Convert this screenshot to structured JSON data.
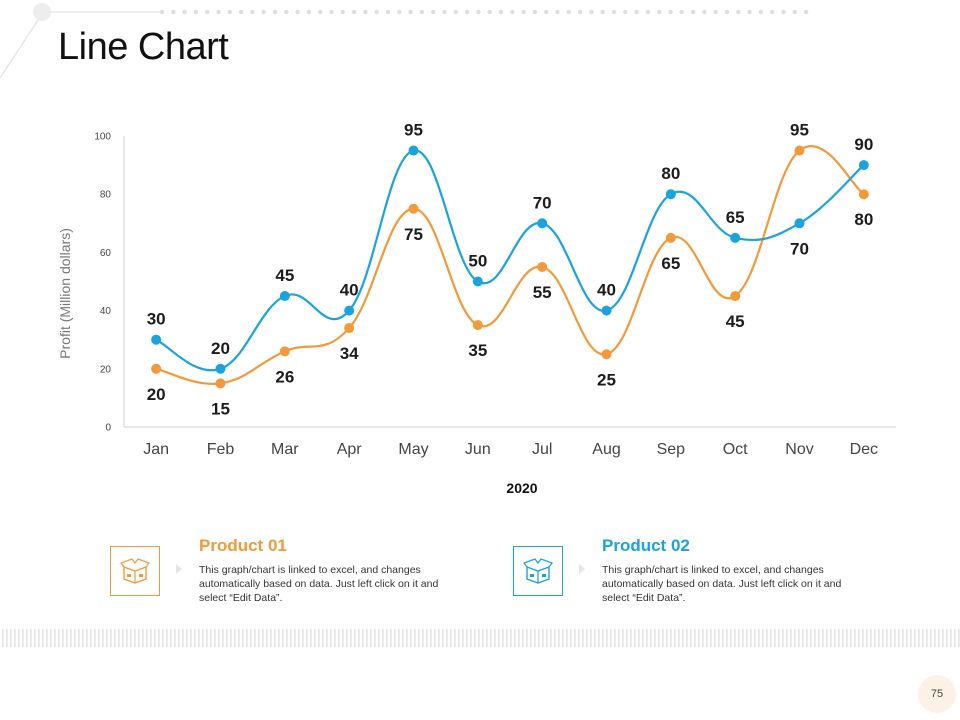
{
  "slide": {
    "title": "Line Chart",
    "page_number": "75"
  },
  "colors": {
    "product01": "#f29a3a",
    "product02": "#1aa3dd",
    "axis": "#cfcfcf",
    "tick_text": "#444444"
  },
  "chart_data": {
    "type": "line",
    "xlabel": "2020",
    "ylabel": "Profit  (Million dollars)",
    "ylim": [
      0,
      100
    ],
    "yticks": [
      0,
      20,
      40,
      60,
      80,
      100
    ],
    "categories": [
      "Jan",
      "Feb",
      "Mar",
      "Apr",
      "May",
      "Jun",
      "Jul",
      "Aug",
      "Sep",
      "Oct",
      "Nov",
      "Dec"
    ],
    "series": [
      {
        "name": "Product 01",
        "color": "#f29a3a",
        "values": [
          20,
          15,
          26,
          34,
          75,
          35,
          55,
          25,
          65,
          45,
          95,
          80
        ]
      },
      {
        "name": "Product 02",
        "color": "#1aa3dd",
        "values": [
          30,
          20,
          45,
          40,
          95,
          50,
          70,
          40,
          80,
          65,
          70,
          90
        ]
      }
    ]
  },
  "products": [
    {
      "title": "Product 01",
      "icon": "box-icon",
      "color": "#f29a3a",
      "description": "This graph/chart is linked to excel, and changes automatically based on data. Just left click on it and select “Edit Data”."
    },
    {
      "title": "Product 02",
      "icon": "box-icon",
      "color": "#1aa3dd",
      "description": "This graph/chart is linked to excel, and changes automatically based on data. Just left click on it and select “Edit Data”."
    }
  ]
}
